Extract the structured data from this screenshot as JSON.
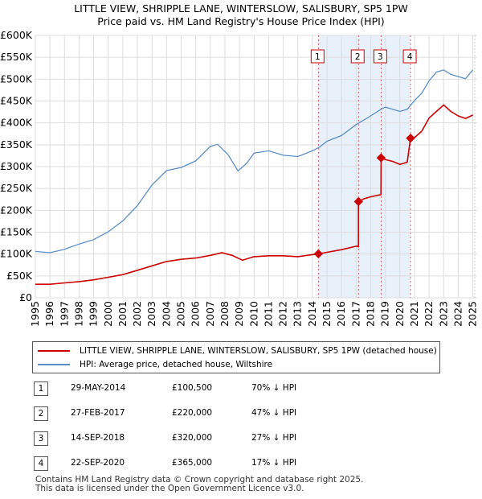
{
  "chart_data": {
    "type": "line",
    "title": "LITTLE VIEW, SHRIPPLE LANE, WINTERSLOW, SALISBURY, SP5 1PW",
    "subtitle": "Price paid vs. HM Land Registry's House Price Index (HPI)",
    "xlim": [
      1995,
      2025.3
    ],
    "ylim": [
      0,
      600000
    ],
    "yticks": [
      0,
      50000,
      100000,
      150000,
      200000,
      250000,
      300000,
      350000,
      400000,
      450000,
      500000,
      550000,
      600000
    ],
    "ytick_labels": [
      "£0",
      "£50K",
      "£100K",
      "£150K",
      "£200K",
      "£250K",
      "£300K",
      "£350K",
      "£400K",
      "£450K",
      "£500K",
      "£550K",
      "£600K"
    ],
    "xticks": [
      "1995",
      "1996",
      "1997",
      "1998",
      "1999",
      "2000",
      "2001",
      "2002",
      "2003",
      "2004",
      "2005",
      "2006",
      "2007",
      "2008",
      "2009",
      "2010",
      "2011",
      "2012",
      "2013",
      "2014",
      "2015",
      "2016",
      "2017",
      "2018",
      "2019",
      "2020",
      "2021",
      "2022",
      "2023",
      "2024",
      "2025"
    ],
    "series": [
      {
        "name": "LITTLE VIEW, SHRIPPLE LANE, WINTERSLOW, SALISBURY, SP5 1PW (detached house)",
        "color": "#cc0000",
        "points": [
          [
            1995.0,
            31000
          ],
          [
            1996.0,
            31000
          ],
          [
            1997.0,
            34000
          ],
          [
            1998.0,
            37000
          ],
          [
            1999.0,
            41000
          ],
          [
            2000.0,
            47000
          ],
          [
            2001.0,
            53000
          ],
          [
            2002.0,
            63000
          ],
          [
            2003.0,
            73000
          ],
          [
            2004.0,
            83000
          ],
          [
            2005.0,
            88000
          ],
          [
            2006.0,
            91000
          ],
          [
            2007.0,
            97000
          ],
          [
            2007.8,
            103000
          ],
          [
            2008.5,
            97000
          ],
          [
            2009.2,
            86000
          ],
          [
            2010.0,
            94000
          ],
          [
            2011.0,
            96000
          ],
          [
            2012.0,
            96000
          ],
          [
            2013.0,
            94000
          ],
          [
            2014.41,
            100500
          ],
          [
            2015.0,
            104000
          ],
          [
            2016.0,
            110000
          ],
          [
            2017.0,
            118000
          ],
          [
            2017.16,
            117000
          ],
          [
            2017.16,
            220000
          ],
          [
            2017.5,
            226000
          ],
          [
            2018.0,
            231000
          ],
          [
            2018.7,
            236000
          ],
          [
            2018.71,
            320000
          ],
          [
            2019.0,
            316000
          ],
          [
            2019.5,
            312000
          ],
          [
            2020.0,
            305000
          ],
          [
            2020.5,
            310000
          ],
          [
            2020.73,
            365000
          ],
          [
            2021.0,
            366000
          ],
          [
            2021.5,
            381000
          ],
          [
            2022.0,
            411000
          ],
          [
            2022.5,
            426000
          ],
          [
            2023.0,
            441000
          ],
          [
            2023.5,
            426000
          ],
          [
            2024.0,
            416000
          ],
          [
            2024.5,
            410000
          ],
          [
            2025.0,
            418000
          ]
        ]
      },
      {
        "name": "HPI: Average price, detached house, Wiltshire",
        "color": "#5b8fc9",
        "points": [
          [
            1995.0,
            106000
          ],
          [
            1996.0,
            103000
          ],
          [
            1997.0,
            111000
          ],
          [
            1998.0,
            123000
          ],
          [
            1999.0,
            133000
          ],
          [
            2000.0,
            151000
          ],
          [
            2001.0,
            176000
          ],
          [
            2002.0,
            211000
          ],
          [
            2003.0,
            258000
          ],
          [
            2004.0,
            291000
          ],
          [
            2005.0,
            298000
          ],
          [
            2006.0,
            313000
          ],
          [
            2007.0,
            346000
          ],
          [
            2007.5,
            351000
          ],
          [
            2008.2,
            328000
          ],
          [
            2008.9,
            290000
          ],
          [
            2009.5,
            308000
          ],
          [
            2010.0,
            331000
          ],
          [
            2011.0,
            336000
          ],
          [
            2012.0,
            326000
          ],
          [
            2013.0,
            323000
          ],
          [
            2014.0,
            336000
          ],
          [
            2014.5,
            345000
          ],
          [
            2015.0,
            358000
          ],
          [
            2016.0,
            371000
          ],
          [
            2017.0,
            396000
          ],
          [
            2017.5,
            406000
          ],
          [
            2018.0,
            416000
          ],
          [
            2018.7,
            431000
          ],
          [
            2019.0,
            436000
          ],
          [
            2019.5,
            431000
          ],
          [
            2020.0,
            426000
          ],
          [
            2020.5,
            431000
          ],
          [
            2021.0,
            451000
          ],
          [
            2021.5,
            468000
          ],
          [
            2022.0,
            496000
          ],
          [
            2022.5,
            516000
          ],
          [
            2023.0,
            521000
          ],
          [
            2023.5,
            511000
          ],
          [
            2024.0,
            506000
          ],
          [
            2024.5,
            501000
          ],
          [
            2025.0,
            521000
          ]
        ]
      }
    ],
    "sale_markers": [
      {
        "label": "1",
        "x": 2014.41,
        "y": 100500
      },
      {
        "label": "2",
        "x": 2017.16,
        "y": 220000
      },
      {
        "label": "3",
        "x": 2018.71,
        "y": 320000
      },
      {
        "label": "4",
        "x": 2020.73,
        "y": 365000
      }
    ],
    "shading": {
      "start": 2014.41,
      "end": 2020.73,
      "color": "#e8f0fa"
    },
    "legend_position": "below"
  },
  "legend": {
    "property_label": "LITTLE VIEW, SHRIPPLE LANE, WINTERSLOW, SALISBURY, SP5 1PW (detached house)",
    "hpi_label": "HPI: Average price, detached house, Wiltshire"
  },
  "sales": [
    {
      "num": "1",
      "date": "29-MAY-2014",
      "price": "£100,500",
      "hpi": "70% ↓ HPI"
    },
    {
      "num": "2",
      "date": "27-FEB-2017",
      "price": "£220,000",
      "hpi": "47% ↓ HPI"
    },
    {
      "num": "3",
      "date": "14-SEP-2018",
      "price": "£320,000",
      "hpi": "27% ↓ HPI"
    },
    {
      "num": "4",
      "date": "22-SEP-2020",
      "price": "£365,000",
      "hpi": "17% ↓ HPI"
    }
  ],
  "footer": {
    "line1": "Contains HM Land Registry data © Crown copyright and database right 2025.",
    "line2": "This data is licensed under the Open Government Licence v3.0."
  }
}
